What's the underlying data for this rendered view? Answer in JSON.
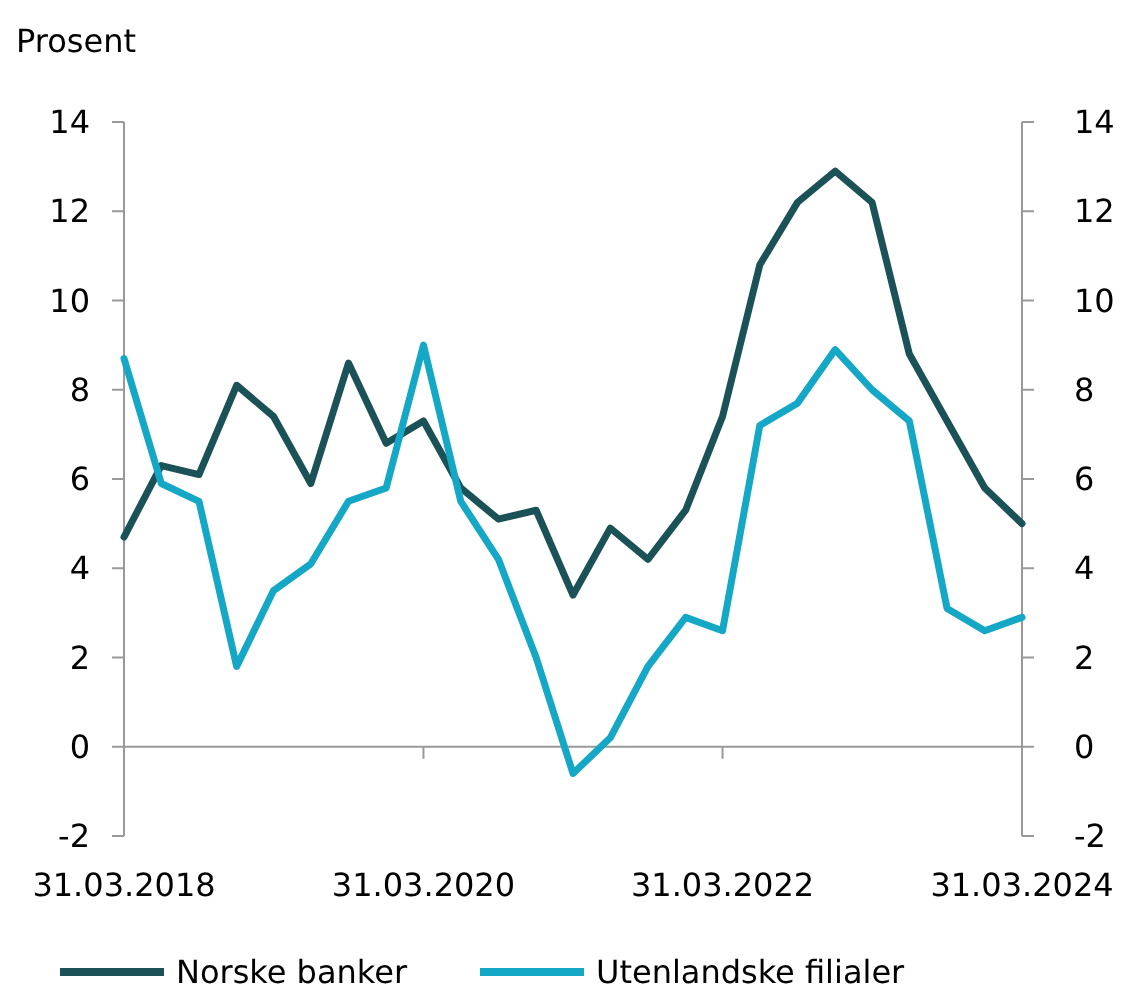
{
  "chart_data": {
    "type": "line",
    "ylabel": "Prosent",
    "x": [
      "2018-03-31",
      "2018-06-30",
      "2018-09-30",
      "2018-12-31",
      "2019-03-31",
      "2019-06-30",
      "2019-09-30",
      "2019-12-31",
      "2020-03-31",
      "2020-06-30",
      "2020-09-30",
      "2020-12-31",
      "2021-03-31",
      "2021-06-30",
      "2021-09-30",
      "2021-12-31",
      "2022-03-31",
      "2022-06-30",
      "2022-09-30",
      "2022-12-31",
      "2023-03-31",
      "2023-06-30",
      "2023-09-30",
      "2023-12-31",
      "2024-03-31"
    ],
    "series": [
      {
        "name": "Norske banker",
        "color": "#1b5258",
        "values": [
          4.7,
          6.3,
          6.1,
          8.1,
          7.4,
          5.9,
          8.6,
          6.8,
          7.3,
          5.8,
          5.1,
          5.3,
          3.4,
          4.9,
          4.2,
          5.3,
          7.4,
          10.8,
          12.2,
          12.9,
          12.2,
          8.8,
          7.3,
          5.8,
          5.0
        ]
      },
      {
        "name": "Utenlandske filialer",
        "color": "#14a8c6",
        "values": [
          8.7,
          5.9,
          5.5,
          1.8,
          3.5,
          4.1,
          5.5,
          5.8,
          9.0,
          5.5,
          4.2,
          2.0,
          -0.6,
          0.2,
          1.8,
          2.9,
          2.6,
          7.2,
          7.7,
          8.9,
          8.0,
          7.3,
          3.1,
          2.6,
          2.9
        ]
      }
    ],
    "xlim": [
      "2018-03-31",
      "2024-03-31"
    ],
    "xticks": [
      {
        "value": "2018-03-31",
        "label": "31.03.2018"
      },
      {
        "value": "2020-03-31",
        "label": "31.03.2020"
      },
      {
        "value": "2022-03-31",
        "label": "31.03.2022"
      },
      {
        "value": "2024-03-31",
        "label": "31.03.2024"
      }
    ],
    "ylim": [
      -2,
      14
    ],
    "yticks": [
      -2,
      0,
      2,
      4,
      6,
      8,
      10,
      12,
      14
    ],
    "y2lim": [
      -2,
      14
    ],
    "y2ticks": [
      -2,
      0,
      2,
      4,
      6,
      8,
      10,
      12,
      14
    ],
    "legend": "bottom",
    "marker": "none",
    "line_style": "solid"
  }
}
